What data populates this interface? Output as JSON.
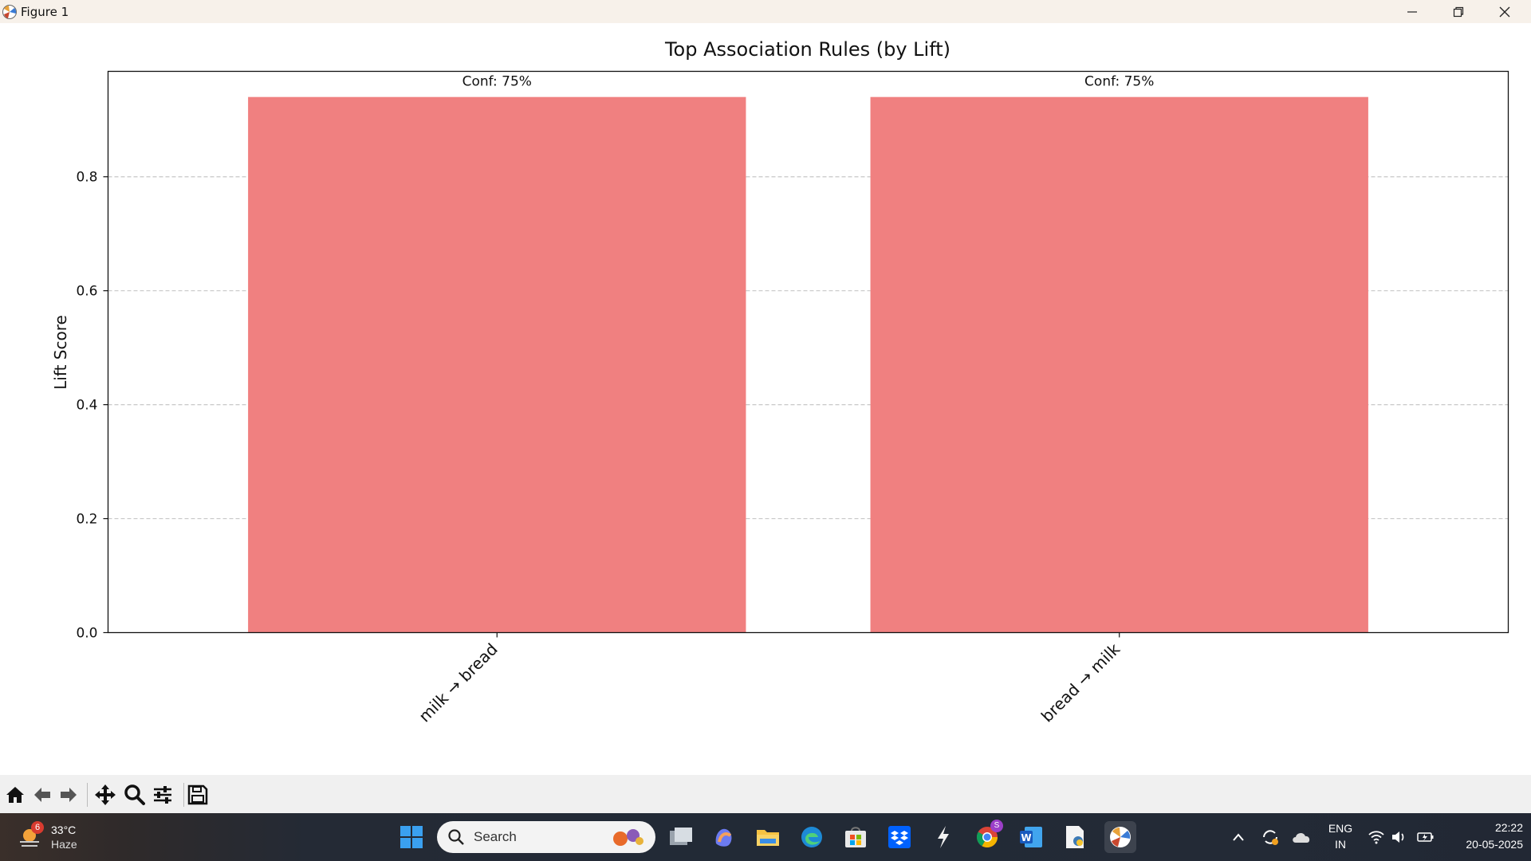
{
  "window": {
    "title": "Figure 1"
  },
  "chart_data": {
    "type": "bar",
    "title": "Top Association Rules (by Lift)",
    "xlabel": "",
    "ylabel": "Lift Score",
    "categories": [
      "milk → bread",
      "bread → milk"
    ],
    "values": [
      0.94,
      0.94
    ],
    "bar_labels": [
      "Conf: 75%",
      "Conf: 75%"
    ],
    "ylim": [
      0,
      0.985
    ],
    "yticks": [
      "0.0",
      "0.2",
      "0.4",
      "0.6",
      "0.8"
    ],
    "ytick_values": [
      0,
      0.2,
      0.4,
      0.6,
      0.8
    ],
    "grid": "y-dashed",
    "bar_color": "#f08080"
  },
  "taskbar": {
    "weather": {
      "badge": "6",
      "temp": "33°C",
      "condition": "Haze"
    },
    "search_placeholder": "Search",
    "chrome_badge": "S",
    "lang": {
      "line1": "ENG",
      "line2": "IN"
    },
    "clock": {
      "time": "22:22",
      "date": "20-05-2025"
    }
  }
}
